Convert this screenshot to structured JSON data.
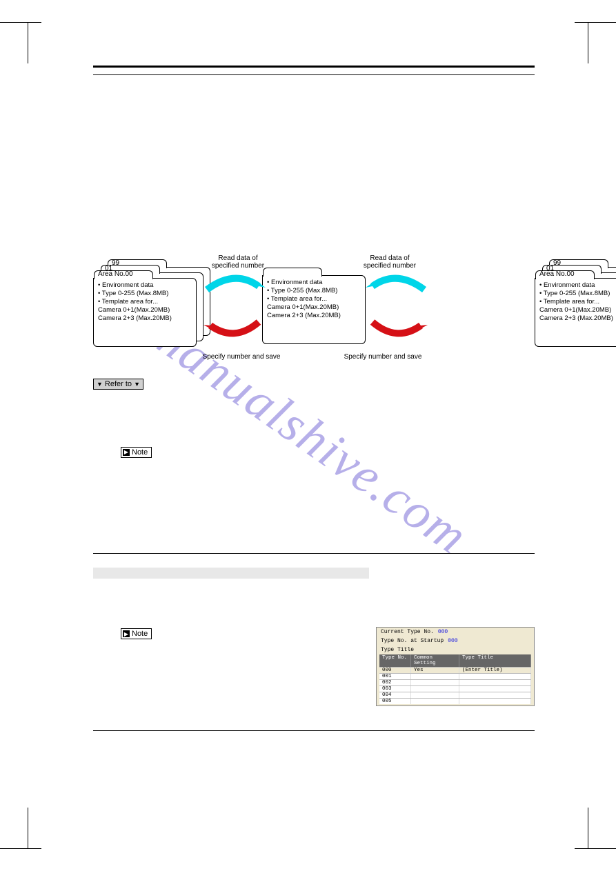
{
  "crop_color": "#000000",
  "side_tab_color": "#808080",
  "watermark": {
    "text": "manualshive.com",
    "color": "#7b6fd8",
    "angle_deg": 35,
    "fontsize": 74
  },
  "diagram": {
    "folders": {
      "left_stack_tabs": [
        "99",
        "01",
        "Area No.00"
      ],
      "right_stack_tabs": [
        "99",
        "01",
        "Area No.00"
      ],
      "body_lines": [
        "• Environment data",
        "• Type 0-255 (Max.8MB)",
        "• Template area for...",
        "  Camera 0+1(Max.20MB)",
        "  Camera 2+3 (Max.20MB)"
      ]
    },
    "arrow_labels": {
      "top": "Read data of\nspecified number",
      "bottom": "Specify number and save"
    },
    "arrow_colors": {
      "read": "#00d5e8",
      "save": "#d51016"
    }
  },
  "badges": {
    "refer_to": "Refer to",
    "note": "Note"
  },
  "subsection_bar": true,
  "mini_panel": {
    "bg": "#efe9d2",
    "rows": [
      {
        "label": "Current Type No.",
        "value": "000"
      },
      {
        "label": "Type No. at Startup",
        "value": "000"
      },
      {
        "label": "Type Title",
        "value": ""
      }
    ],
    "table": {
      "headers": [
        "Type No.",
        "Common Setting",
        "Type Title"
      ],
      "special_row": [
        "000",
        "Yes",
        "(Enter Title)"
      ],
      "rows": [
        "001",
        "002",
        "003",
        "004",
        "005"
      ]
    }
  }
}
